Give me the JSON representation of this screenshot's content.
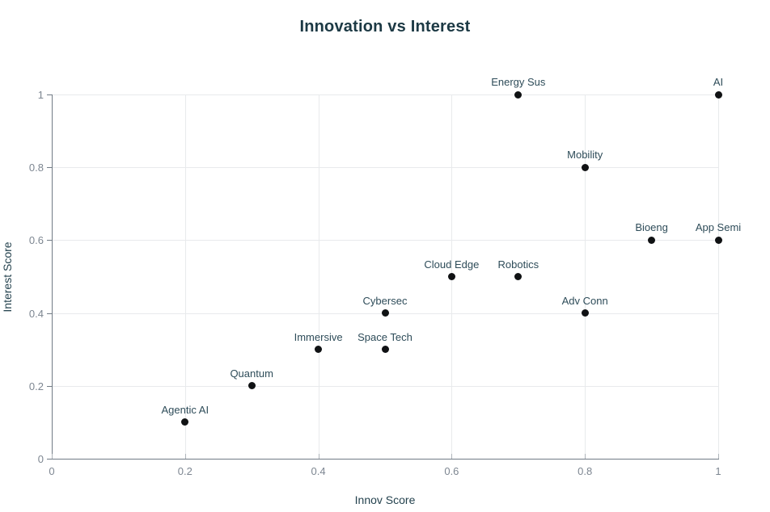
{
  "chart_data": {
    "type": "scatter",
    "title": "Innovation vs Interest",
    "xlabel": "Innov Score",
    "ylabel": "Interest Score",
    "xlim": [
      0,
      1
    ],
    "ylim": [
      0,
      1
    ],
    "x_ticks": [
      0,
      0.2,
      0.4,
      0.6,
      0.8,
      1
    ],
    "y_ticks": [
      0,
      0.2,
      0.4,
      0.6,
      0.8,
      1
    ],
    "grid": true,
    "legend": "none",
    "point_color": "#101214",
    "points": [
      {
        "label": "Agentic AI",
        "x": 0.2,
        "y": 0.1
      },
      {
        "label": "Quantum",
        "x": 0.3,
        "y": 0.2
      },
      {
        "label": "Immersive",
        "x": 0.4,
        "y": 0.3
      },
      {
        "label": "Space Tech",
        "x": 0.5,
        "y": 0.3
      },
      {
        "label": "Cybersec",
        "x": 0.5,
        "y": 0.4
      },
      {
        "label": "Cloud Edge",
        "x": 0.6,
        "y": 0.5
      },
      {
        "label": "Robotics",
        "x": 0.7,
        "y": 0.5
      },
      {
        "label": "Adv Conn",
        "x": 0.8,
        "y": 0.4
      },
      {
        "label": "Energy Sus",
        "x": 0.7,
        "y": 1.0
      },
      {
        "label": "Mobility",
        "x": 0.8,
        "y": 0.8
      },
      {
        "label": "Bioeng",
        "x": 0.9,
        "y": 0.6
      },
      {
        "label": "App Semi",
        "x": 1.0,
        "y": 0.6
      },
      {
        "label": "AI",
        "x": 1.0,
        "y": 1.0
      }
    ]
  },
  "colors": {
    "title": "#1c3944",
    "point_label": "#2e4c59",
    "tick_label": "#7d8691",
    "axis_line": "#717b85",
    "gridline": "#e8eaec",
    "background": "#ffffff"
  }
}
